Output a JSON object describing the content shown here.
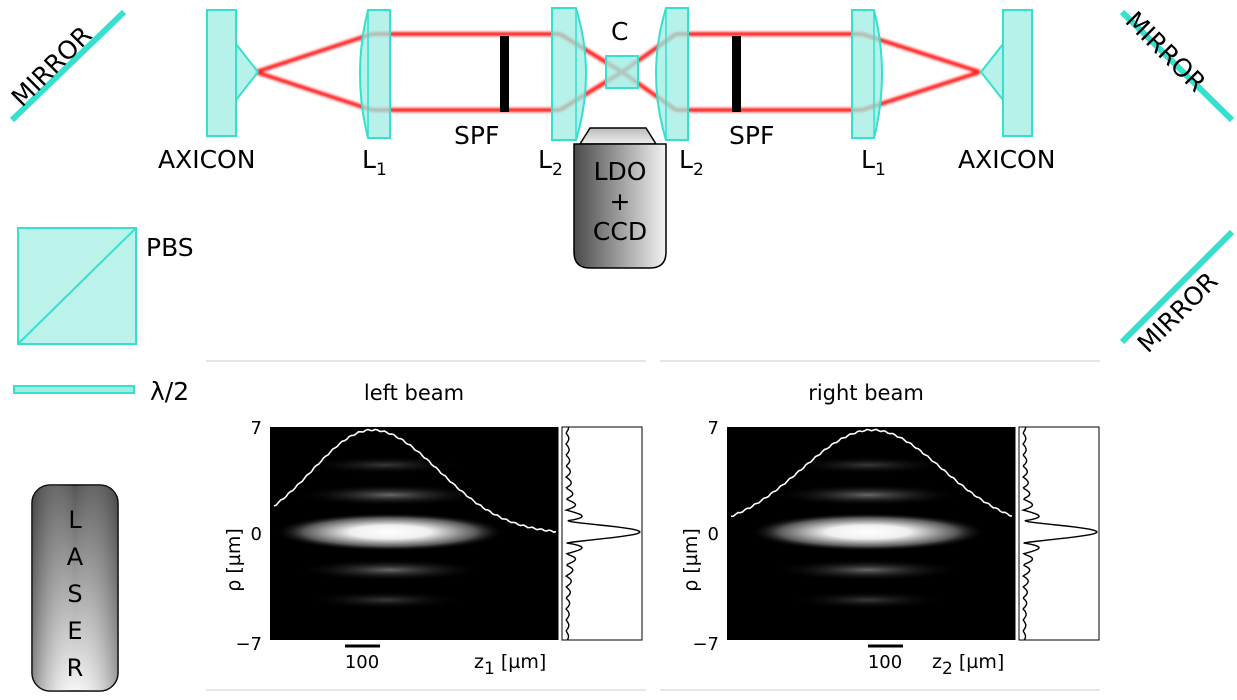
{
  "colors": {
    "beam": "#ff1a1a",
    "optic_fill": "#9eeee3",
    "optic_stroke": "#35e0cc",
    "device_dark": "#555555",
    "device_light": "#f2f2f2"
  },
  "labels": {
    "mirror_top_left": "MIRROR",
    "mirror_top_right": "MIRROR",
    "mirror_bottom_right": "MIRROR",
    "axicon_left": "AXICON",
    "axicon_right": "AXICON",
    "l1_left": "L",
    "l1_left_sub": "1",
    "l2_left": "L",
    "l2_left_sub": "2",
    "l2_right": "L",
    "l2_right_sub": "2",
    "l1_right": "L",
    "l1_right_sub": "1",
    "spf_left": "SPF",
    "spf_right": "SPF",
    "cell": "C",
    "ldo_line1": "LDO",
    "ldo_line2": "+",
    "ldo_line3": "CCD",
    "pbs": "PBS",
    "half_wave": "λ/2",
    "laser_letters": [
      "L",
      "A",
      "S",
      "E",
      "R"
    ]
  },
  "chart_data": [
    {
      "type": "heatmap",
      "title": "left beam",
      "xlabel": "z",
      "xlabel_sub": "1",
      "xlabel_unit": " [µm]",
      "ylabel": "ρ [µm]",
      "y_ticks": [
        "7",
        "0",
        "−7"
      ],
      "ylim": [
        -7,
        7
      ],
      "scale_bar_label": "100",
      "profile_overlay": "axial intensity (white curve)",
      "side_profile": "radial intensity (black curve)"
    },
    {
      "type": "heatmap",
      "title": "right beam",
      "xlabel": "z",
      "xlabel_sub": "2",
      "xlabel_unit": " [µm]",
      "ylabel": "ρ [µm]",
      "y_ticks": [
        "7",
        "0",
        "−7"
      ],
      "ylim": [
        -7,
        7
      ],
      "scale_bar_label": "100",
      "profile_overlay": "axial intensity (white curve)",
      "side_profile": "radial intensity (black curve)"
    }
  ]
}
